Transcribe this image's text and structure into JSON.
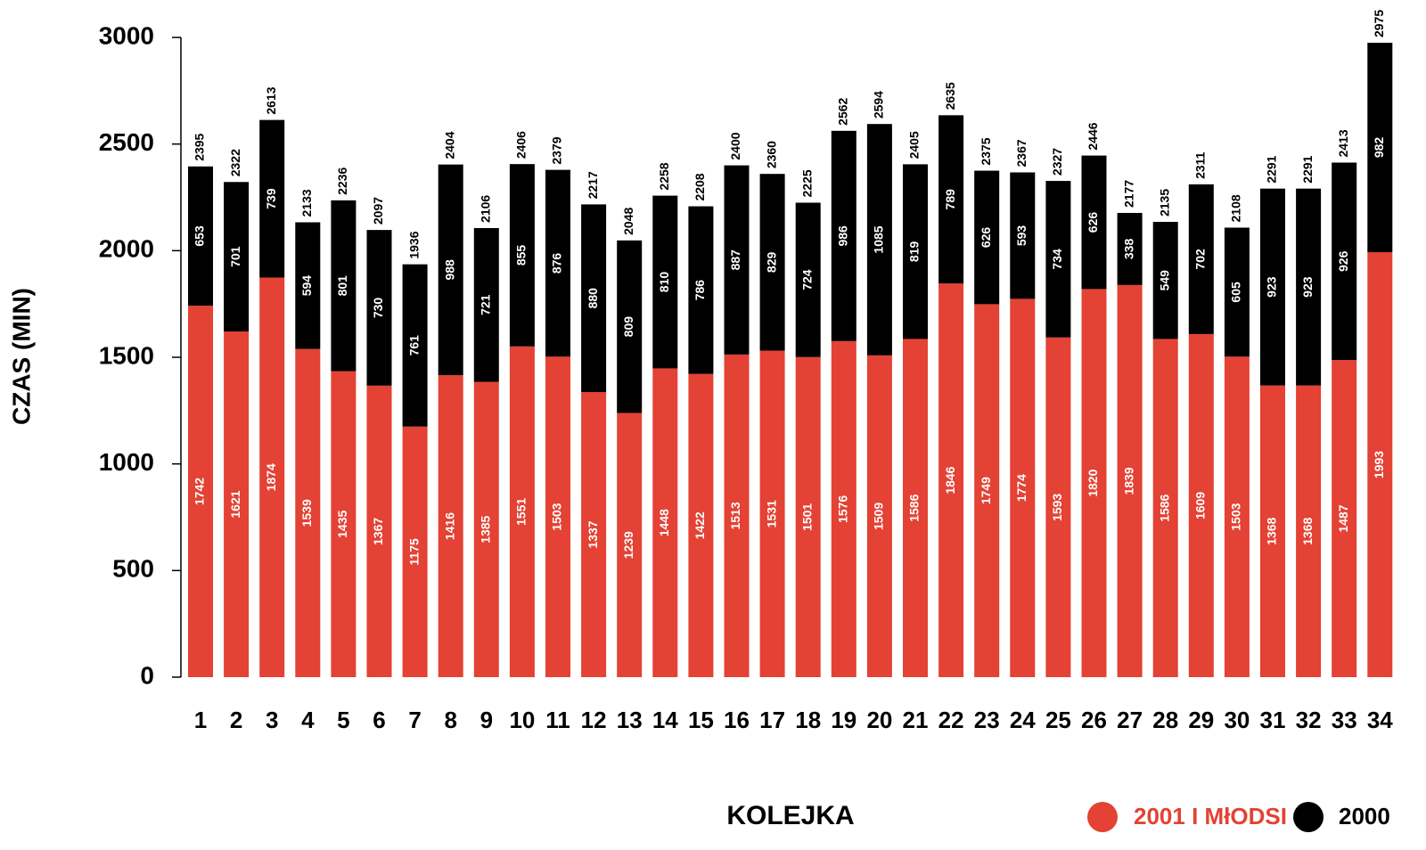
{
  "chart_data": {
    "type": "stacked_bar",
    "y_label": "CZAS (MIN)",
    "x_label": "KOLEJKA",
    "categories": [
      "1",
      "2",
      "3",
      "4",
      "5",
      "6",
      "7",
      "8",
      "9",
      "10",
      "11",
      "12",
      "13",
      "14",
      "15",
      "16",
      "17",
      "18",
      "19",
      "20",
      "21",
      "22",
      "23",
      "24",
      "25",
      "26",
      "27",
      "28",
      "29",
      "30",
      "31",
      "32",
      "33",
      "34"
    ],
    "series": [
      {
        "name": "2001 I MłODSI",
        "color": "#e34234",
        "values": [
          1742,
          1621,
          1874,
          1539,
          1435,
          1367,
          1175,
          1416,
          1385,
          1551,
          1503,
          1337,
          1239,
          1448,
          1422,
          1513,
          1531,
          1501,
          1576,
          1509,
          1586,
          1846,
          1749,
          1774,
          1593,
          1820,
          1839,
          1586,
          1609,
          1503,
          1368,
          1368,
          1487,
          1993
        ]
      },
      {
        "name": "2000",
        "color": "#000000",
        "values": [
          653,
          701,
          739,
          594,
          801,
          730,
          761,
          988,
          721,
          855,
          876,
          880,
          809,
          810,
          786,
          887,
          829,
          724,
          986,
          1085,
          819,
          789,
          626,
          593,
          734,
          626,
          338,
          549,
          702,
          605,
          923,
          923,
          926,
          982
        ]
      }
    ],
    "totals": [
      2395,
      2322,
      2613,
      2133,
      2236,
      2097,
      1936,
      2404,
      2106,
      2406,
      2379,
      2217,
      2048,
      2258,
      2208,
      2400,
      2360,
      2225,
      2562,
      2594,
      2405,
      2635,
      2375,
      2367,
      2327,
      2446,
      2177,
      2135,
      2311,
      2108,
      2291,
      2291,
      2413,
      2975
    ],
    "ylim": [
      0,
      3000
    ],
    "yticks": [
      0,
      500,
      1000,
      1500,
      2000,
      2500,
      3000
    ]
  }
}
